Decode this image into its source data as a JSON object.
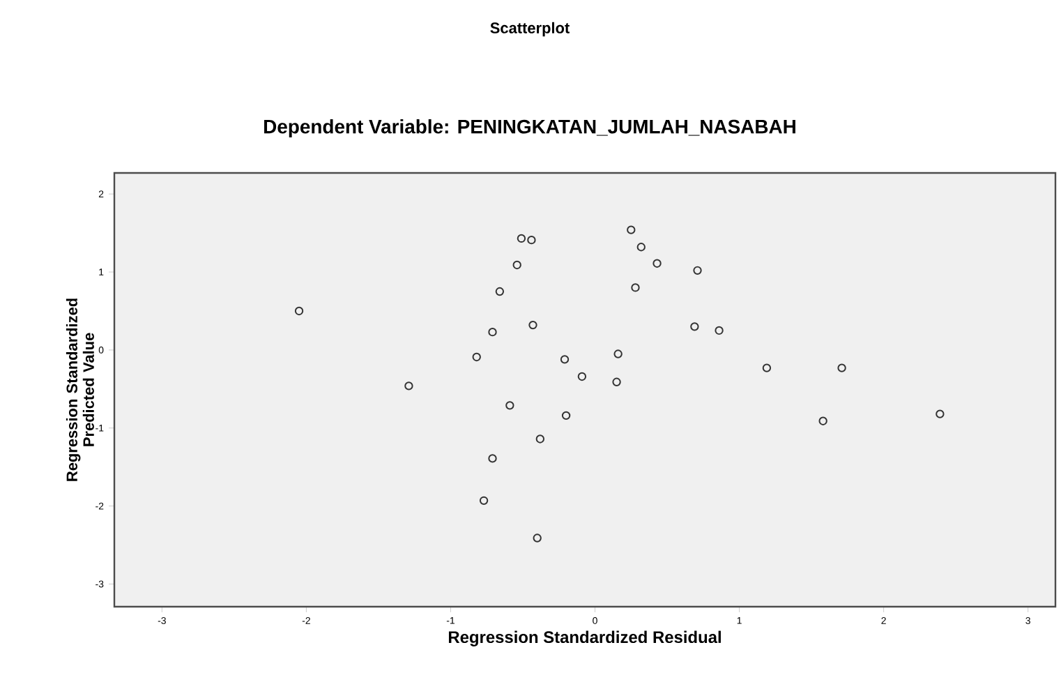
{
  "chart_data": {
    "type": "scatter",
    "title": "Scatterplot",
    "subtitle": "Dependent Variable: PENINGKATAN_JUMLAH_NASABAH",
    "xlabel": "Regression Standardized Residual",
    "ylabel": "Regression Standardized Predicted Value",
    "xlim": [
      -3.33,
      3.19
    ],
    "ylim": [
      -3.29,
      2.27
    ],
    "xticks": [
      -3,
      -2,
      -1,
      0,
      1,
      2,
      3
    ],
    "yticks": [
      -3,
      -2,
      -1,
      0,
      1,
      2
    ],
    "grid": false,
    "marker": "circle",
    "series": [
      {
        "color": "#333333",
        "x": [
          -2.05,
          -1.29,
          -0.82,
          -0.71,
          -0.66,
          -0.54,
          -0.51,
          -0.44,
          -0.43,
          -0.59,
          -0.21,
          -0.09,
          -0.2,
          -0.38,
          -0.71,
          -0.77,
          -0.4,
          0.25,
          0.32,
          0.43,
          0.71,
          0.28,
          0.69,
          0.86,
          0.16,
          0.15,
          1.19,
          1.71,
          1.58,
          2.39
        ],
        "values": [
          0.5,
          -0.46,
          -0.09,
          0.23,
          0.75,
          1.09,
          1.43,
          1.41,
          0.32,
          -0.71,
          -0.12,
          -0.34,
          -0.84,
          -1.14,
          -1.39,
          -1.93,
          -2.41,
          1.54,
          1.32,
          1.11,
          1.02,
          0.8,
          0.3,
          0.25,
          -0.05,
          -0.41,
          -0.23,
          -0.23,
          -0.91,
          -0.82
        ]
      }
    ]
  }
}
